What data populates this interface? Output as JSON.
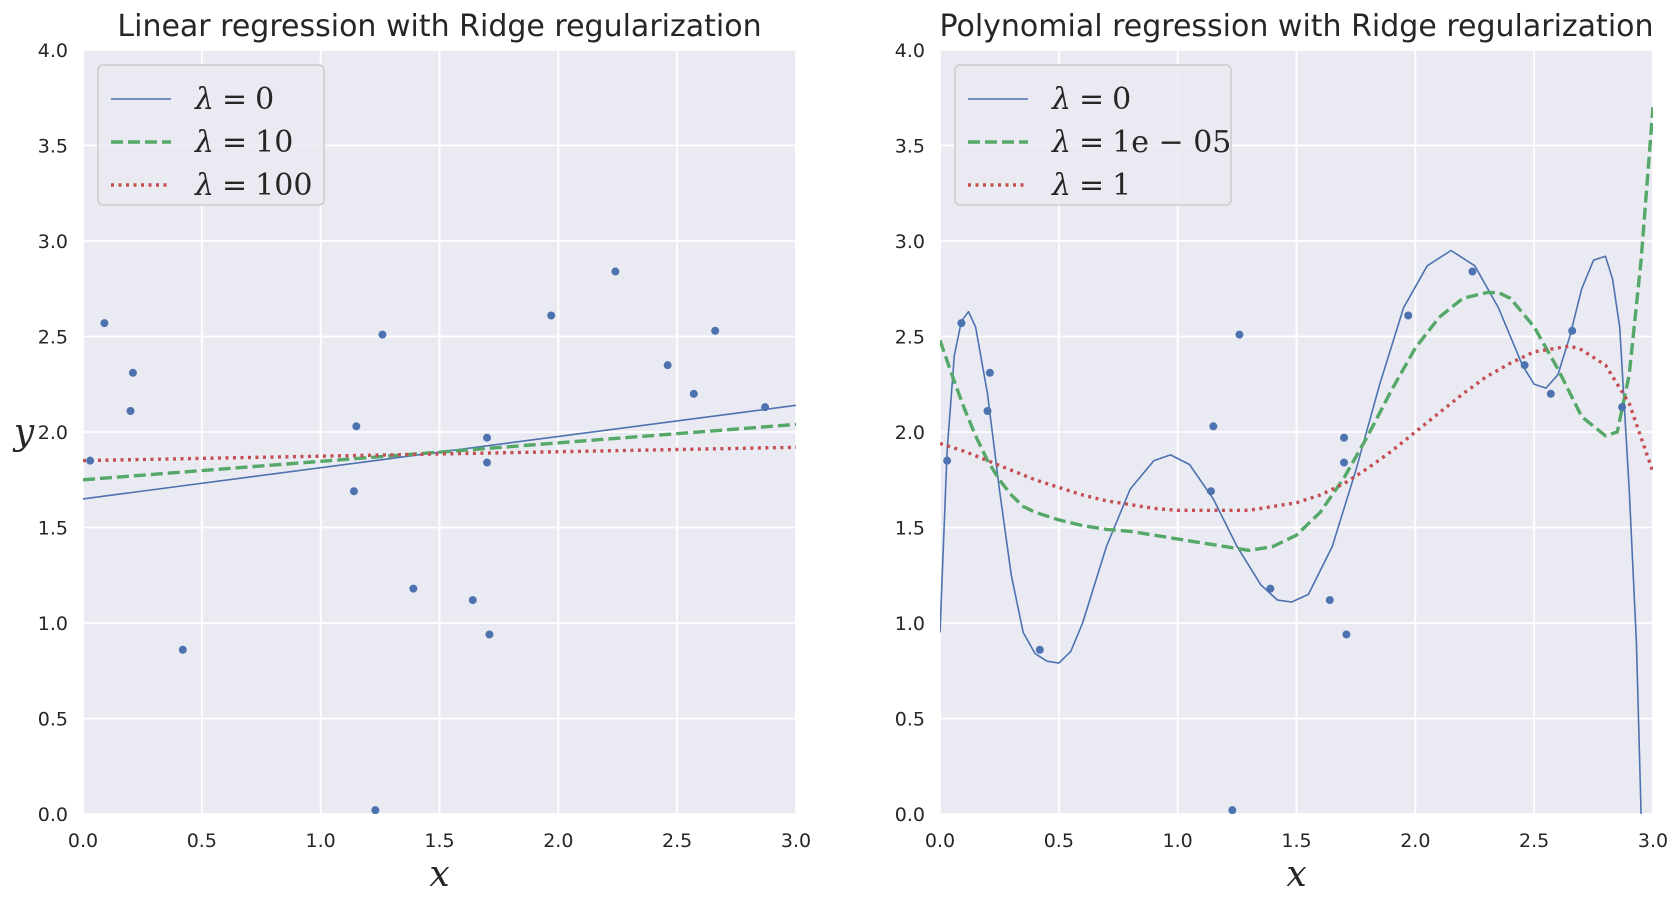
{
  "chart_data": [
    {
      "type": "line",
      "title": "Linear regression with Ridge regularization",
      "xlabel": "x",
      "ylabel": "y",
      "xlim": [
        0.0,
        3.0
      ],
      "ylim": [
        0.0,
        4.0
      ],
      "xticks": [
        "0.0",
        "0.5",
        "1.0",
        "1.5",
        "2.0",
        "2.5",
        "3.0"
      ],
      "yticks": [
        "0.0",
        "0.5",
        "1.0",
        "1.5",
        "2.0",
        "2.5",
        "3.0",
        "3.5",
        "4.0"
      ],
      "grid": true,
      "legend_position": "top-left",
      "points": {
        "x": [
          0.03,
          0.09,
          0.2,
          0.21,
          0.42,
          1.14,
          1.15,
          1.23,
          1.26,
          1.39,
          1.64,
          1.7,
          1.7,
          1.71,
          1.97,
          2.24,
          2.46,
          2.57,
          2.66,
          2.87
        ],
        "y": [
          1.85,
          2.57,
          2.11,
          2.31,
          0.86,
          1.69,
          2.03,
          0.02,
          2.51,
          1.18,
          1.12,
          1.84,
          1.97,
          0.94,
          2.61,
          2.84,
          2.35,
          2.2,
          2.53,
          2.13
        ]
      },
      "series": [
        {
          "name": "λ = 0",
          "lambda_value": "0",
          "style": "solid",
          "color": "#4c72b0",
          "x": [
            0.0,
            3.0
          ],
          "y": [
            1.65,
            2.14
          ]
        },
        {
          "name": "λ = 10",
          "lambda_value": "10",
          "style": "dashed",
          "color": "#55a868",
          "x": [
            0.0,
            3.0
          ],
          "y": [
            1.75,
            2.04
          ]
        },
        {
          "name": "λ = 100",
          "lambda_value": "100",
          "style": "dotted",
          "color": "#c44e52",
          "x": [
            0.0,
            3.0
          ],
          "y": [
            1.85,
            1.92
          ]
        }
      ]
    },
    {
      "type": "line",
      "title": "Polynomial regression with Ridge regularization",
      "xlabel": "x",
      "ylabel": "",
      "xlim": [
        0.0,
        3.0
      ],
      "ylim": [
        0.0,
        4.0
      ],
      "xticks": [
        "0.0",
        "0.5",
        "1.0",
        "1.5",
        "2.0",
        "2.5",
        "3.0"
      ],
      "yticks": [
        "0.0",
        "0.5",
        "1.0",
        "1.5",
        "2.0",
        "2.5",
        "3.0",
        "3.5",
        "4.0"
      ],
      "grid": true,
      "legend_position": "top-left",
      "points": {
        "x": [
          0.03,
          0.09,
          0.2,
          0.21,
          0.42,
          1.14,
          1.15,
          1.23,
          1.26,
          1.39,
          1.64,
          1.7,
          1.7,
          1.71,
          1.97,
          2.24,
          2.46,
          2.57,
          2.66,
          2.87
        ],
        "y": [
          1.85,
          2.57,
          2.11,
          2.31,
          0.86,
          1.69,
          2.03,
          0.02,
          2.51,
          1.18,
          1.12,
          1.84,
          1.97,
          0.94,
          2.61,
          2.84,
          2.35,
          2.2,
          2.53,
          2.13
        ]
      },
      "series": [
        {
          "name": "λ = 0",
          "lambda_value": "0",
          "style": "solid",
          "color": "#4c72b0",
          "x": [
            0.0,
            0.03,
            0.06,
            0.09,
            0.12,
            0.15,
            0.2,
            0.25,
            0.3,
            0.35,
            0.4,
            0.45,
            0.5,
            0.55,
            0.6,
            0.7,
            0.8,
            0.9,
            0.97,
            1.05,
            1.15,
            1.25,
            1.35,
            1.42,
            1.48,
            1.55,
            1.65,
            1.75,
            1.85,
            1.95,
            2.05,
            2.15,
            2.25,
            2.35,
            2.45,
            2.5,
            2.55,
            2.6,
            2.65,
            2.7,
            2.75,
            2.8,
            2.83,
            2.86,
            2.9,
            2.93,
            2.95
          ],
          "y": [
            0.95,
            1.9,
            2.4,
            2.58,
            2.63,
            2.55,
            2.2,
            1.7,
            1.25,
            0.95,
            0.84,
            0.8,
            0.79,
            0.85,
            1.0,
            1.4,
            1.7,
            1.85,
            1.88,
            1.83,
            1.65,
            1.4,
            1.2,
            1.12,
            1.11,
            1.15,
            1.4,
            1.8,
            2.25,
            2.65,
            2.87,
            2.95,
            2.87,
            2.65,
            2.35,
            2.25,
            2.23,
            2.3,
            2.5,
            2.75,
            2.9,
            2.92,
            2.8,
            2.55,
            1.7,
            0.9,
            0.0
          ]
        },
        {
          "name": "λ = 1e − 05",
          "lambda_value": "1e − 05",
          "style": "dashed",
          "color": "#55a868",
          "x": [
            0.0,
            0.05,
            0.1,
            0.15,
            0.2,
            0.25,
            0.3,
            0.35,
            0.4,
            0.5,
            0.6,
            0.7,
            0.8,
            0.9,
            1.0,
            1.1,
            1.2,
            1.3,
            1.4,
            1.5,
            1.6,
            1.7,
            1.8,
            1.9,
            2.0,
            2.1,
            2.2,
            2.3,
            2.35,
            2.4,
            2.5,
            2.6,
            2.7,
            2.8,
            2.85,
            2.9,
            2.95,
            3.0
          ],
          "y": [
            2.48,
            2.3,
            2.13,
            1.98,
            1.85,
            1.75,
            1.67,
            1.61,
            1.58,
            1.54,
            1.51,
            1.49,
            1.48,
            1.46,
            1.44,
            1.42,
            1.4,
            1.38,
            1.4,
            1.46,
            1.58,
            1.76,
            1.98,
            2.22,
            2.44,
            2.6,
            2.7,
            2.73,
            2.73,
            2.7,
            2.55,
            2.33,
            2.08,
            1.98,
            2.0,
            2.3,
            2.9,
            3.7
          ]
        },
        {
          "name": "λ = 1",
          "lambda_value": "1",
          "style": "dotted",
          "color": "#c44e52",
          "x": [
            0.0,
            0.1,
            0.2,
            0.3,
            0.4,
            0.5,
            0.6,
            0.7,
            0.8,
            0.9,
            1.0,
            1.1,
            1.2,
            1.3,
            1.4,
            1.5,
            1.6,
            1.7,
            1.8,
            1.9,
            2.0,
            2.1,
            2.2,
            2.3,
            2.4,
            2.5,
            2.6,
            2.65,
            2.7,
            2.8,
            2.9,
            3.0
          ],
          "y": [
            1.94,
            1.9,
            1.85,
            1.8,
            1.75,
            1.71,
            1.67,
            1.64,
            1.62,
            1.6,
            1.59,
            1.59,
            1.59,
            1.59,
            1.61,
            1.63,
            1.67,
            1.73,
            1.81,
            1.9,
            2.0,
            2.1,
            2.2,
            2.29,
            2.36,
            2.42,
            2.44,
            2.45,
            2.43,
            2.35,
            2.15,
            1.79
          ]
        }
      ]
    }
  ]
}
